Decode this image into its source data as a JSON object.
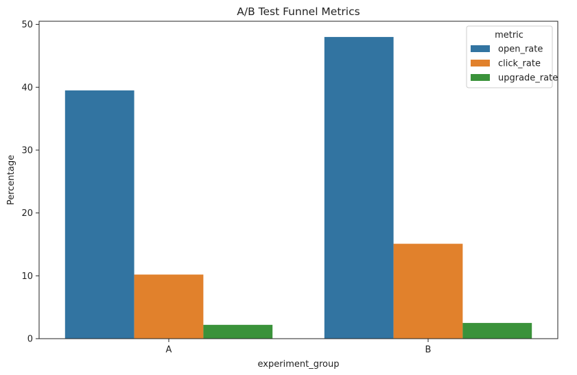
{
  "chart_data": {
    "type": "bar",
    "title": "A/B Test Funnel Metrics",
    "xlabel": "experiment_group",
    "ylabel": "Percentage",
    "categories": [
      "A",
      "B"
    ],
    "ylim": [
      0,
      50.5
    ],
    "yticks": [
      0,
      10,
      20,
      30,
      40,
      50
    ],
    "grid": false,
    "legend": {
      "title": "metric",
      "position": "top-right"
    },
    "series": [
      {
        "name": "open_rate",
        "color": "#3274a1",
        "values": [
          39.5,
          48.0
        ]
      },
      {
        "name": "click_rate",
        "color": "#e1812c",
        "values": [
          10.2,
          15.1
        ]
      },
      {
        "name": "upgrade_rate",
        "color": "#3a923a",
        "values": [
          2.2,
          2.5
        ]
      }
    ]
  }
}
